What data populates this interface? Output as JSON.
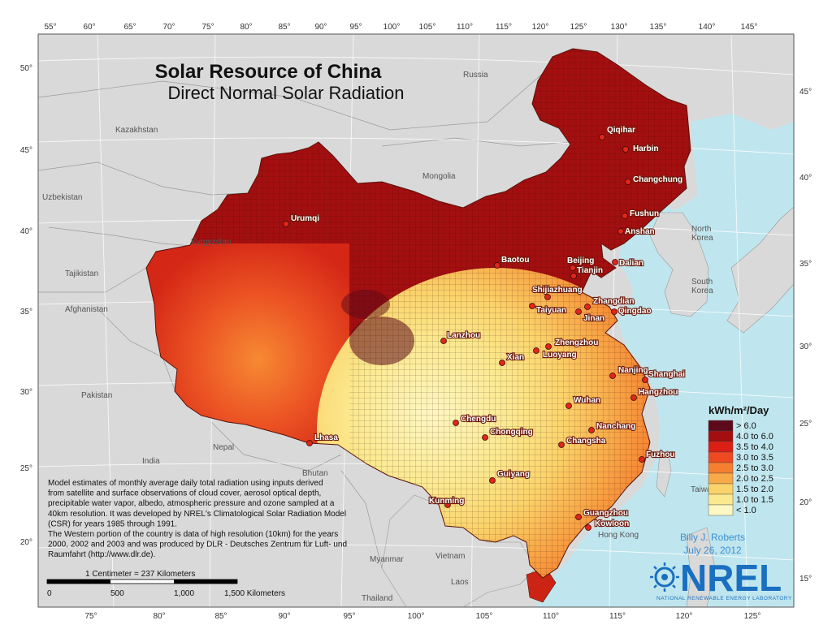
{
  "title": "Solar Resource of China",
  "subtitle": "Direct Normal Solar Radiation",
  "lon_ticks_top": [
    "55°",
    "60°",
    "65°",
    "70°",
    "75°",
    "80°",
    "85°",
    "90°",
    "95°",
    "100°",
    "105°",
    "110°",
    "115°",
    "120°",
    "125°",
    "130°",
    "135°",
    "140°",
    "145°"
  ],
  "lon_ticks_bottom": [
    "75°",
    "80°",
    "85°",
    "90°",
    "95°",
    "100°",
    "105°",
    "110°",
    "115°",
    "120°",
    "125°"
  ],
  "lat_ticks_left": [
    "50°",
    "45°",
    "40°",
    "35°",
    "30°",
    "25°",
    "20°"
  ],
  "lat_ticks_right": [
    "45°",
    "40°",
    "35°",
    "30°",
    "25°",
    "20°",
    "15°"
  ],
  "countries": [
    "Russia",
    "Kazakhstan",
    "Mongolia",
    "Uzbekistan",
    "Kyrgyzstan",
    "Tajikistan",
    "Afghanistan",
    "Pakistan",
    "Nepal",
    "India",
    "Bhutan",
    "Myanmar",
    "Laos",
    "Vietnam",
    "Thailand",
    "North Korea",
    "South Korea",
    "Taiwan",
    "Hong Kong"
  ],
  "cities": [
    "Qiqihar",
    "Harbin",
    "Changchung",
    "Fushun",
    "Anshan",
    "Dalian",
    "Urumqi",
    "Baotou",
    "Beijing",
    "Tianjin",
    "Shijiazhuang",
    "Zhangdian",
    "Qingdao",
    "Taiyuan",
    "Jinan",
    "Lanzhou",
    "Zhengzhou",
    "Xian",
    "Luoyang",
    "Nanjing",
    "Shanghai",
    "Hangzhou",
    "Wuhan",
    "Chengdu",
    "Chongqing",
    "Nanchang",
    "Changsha",
    "Lhasa",
    "Fuzhou",
    "Guiyang",
    "Kunming",
    "Guangzhou",
    "Kowloon"
  ],
  "legend": {
    "title": "kWh/m²/Day",
    "items": [
      {
        "label": "> 6.0",
        "color": "#5c0a1a"
      },
      {
        "label": "4.0 to 6.0",
        "color": "#a30f10"
      },
      {
        "label": "3.5 to 4.0",
        "color": "#dc1f14"
      },
      {
        "label": "3.0 to 3.5",
        "color": "#ee4a22"
      },
      {
        "label": "2.5 to 3.0",
        "color": "#f57f30"
      },
      {
        "label": "2.0 to 2.5",
        "color": "#f8a948"
      },
      {
        "label": "1.5 to 2.0",
        "color": "#fbd36b"
      },
      {
        "label": "1.0 to 1.5",
        "color": "#fbe98f"
      },
      {
        "label": "< 1.0",
        "color": "#fdf7c2"
      }
    ]
  },
  "notes": [
    "Model estimates of monthly average daily total radiation using inputs derived",
    "from satellite and surface observations of cloud cover, aerosol optical depth,",
    "precipitable water vapor, albedo, atmospheric pressure and ozone sampled at a",
    "40km resolution.  It was developed by NREL's Climatological Solar Radiation Model",
    "(CSR) for years 1985 through 1991.",
    "The Western portion of the country is data of high resolution (10km) for the years",
    "2000, 2002 and 2003 and was produced by DLR - Deutsches Zentrum für Luft- und",
    "Raumfahrt (http://www.dlr.de)."
  ],
  "scale": {
    "label": "1 Centimeter = 237 Kilometers",
    "ticks": [
      "0",
      "500",
      "1,000",
      "1,500 Kilometers"
    ]
  },
  "author": "Billy J. Roberts",
  "date": "July 26, 2012",
  "logo": {
    "text": "NREL",
    "subtitle": "NATIONAL RENEWABLE ENERGY LABORATORY"
  },
  "colors": {
    "land": "#d9d9d9",
    "water": "#bfe6ee",
    "border": "#9a9a9a"
  }
}
